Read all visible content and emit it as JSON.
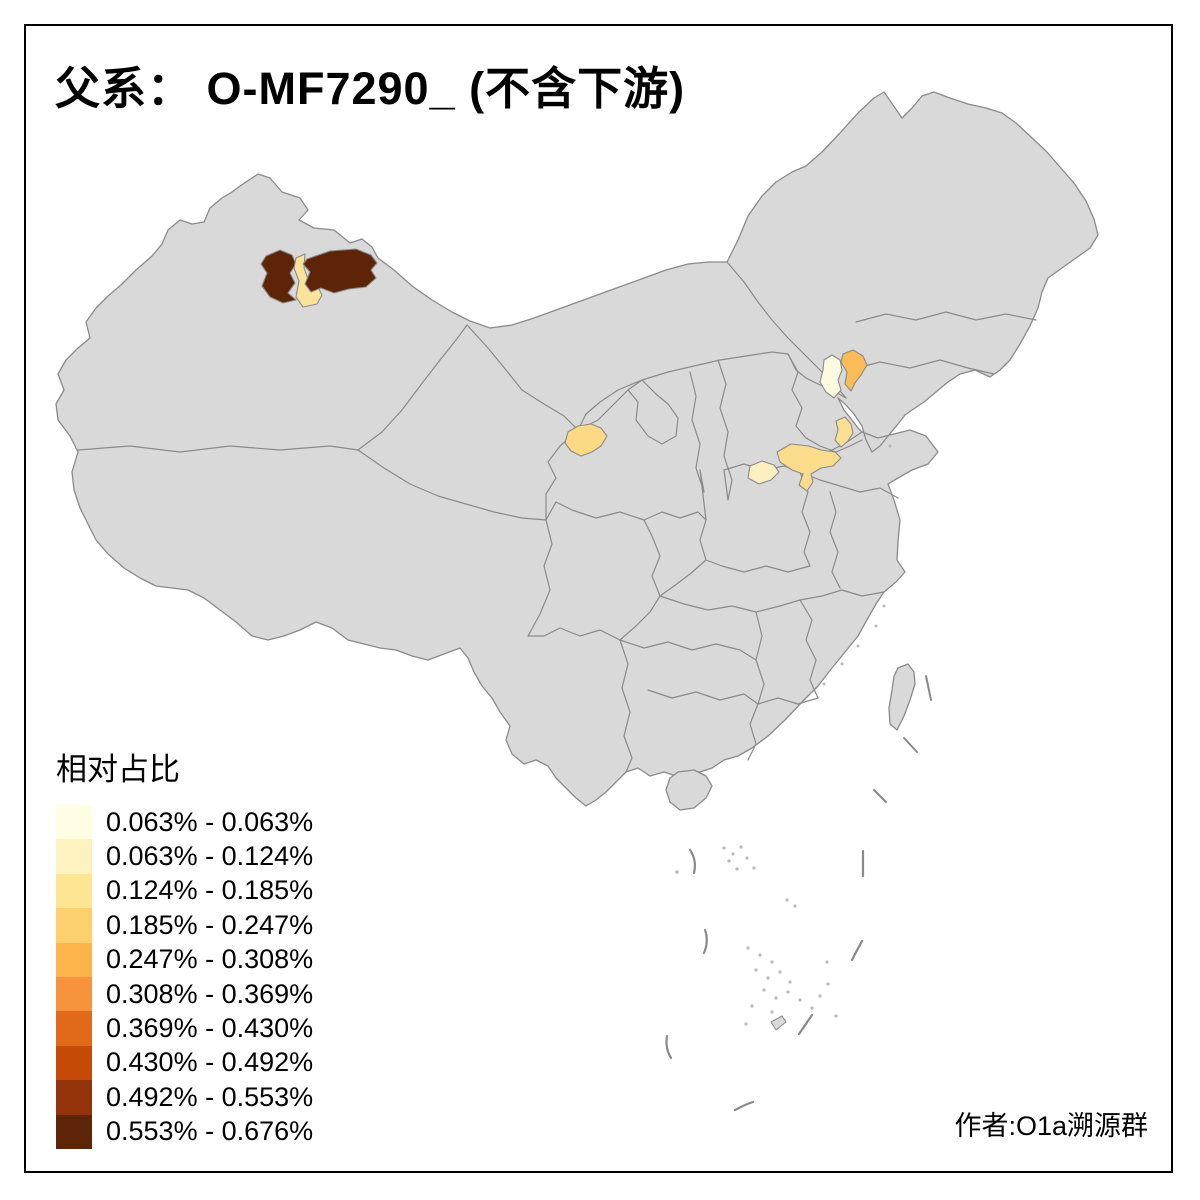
{
  "title": "父系： O-MF7290_ (不含下游)",
  "author": "作者:O1a溯源群",
  "legend": {
    "title": "相对占比",
    "items": [
      {
        "label": "0.063% - 0.063%",
        "color": "#FFFEE3"
      },
      {
        "label": "0.063% - 0.124%",
        "color": "#FEF3C0"
      },
      {
        "label": "0.124% - 0.185%",
        "color": "#FDE592"
      },
      {
        "label": "0.185% - 0.247%",
        "color": "#FDD06E"
      },
      {
        "label": "0.247% - 0.308%",
        "color": "#FCB44B"
      },
      {
        "label": "0.308% - 0.369%",
        "color": "#F7933B"
      },
      {
        "label": "0.369% - 0.430%",
        "color": "#E16A18"
      },
      {
        "label": "0.430% - 0.492%",
        "color": "#C64A05"
      },
      {
        "label": "0.492% - 0.553%",
        "color": "#943309"
      },
      {
        "label": "0.553% - 0.676%",
        "color": "#5E2408"
      }
    ]
  },
  "map": {
    "land_color": "#D9D9D9",
    "border_color": "#8A8A8A",
    "sea_color": "#FFFFFF",
    "frame_color": "#000000",
    "patches": [
      {
        "id": "xinjiang-north-west",
        "color": "#5E2408",
        "bucket": "0.553% - 0.676%"
      },
      {
        "id": "xinjiang-north-middle",
        "color": "#FBE49A",
        "bucket": "0.124% - 0.185%"
      },
      {
        "id": "xinjiang-north-east",
        "color": "#5E2408",
        "bucket": "0.553% - 0.676%"
      },
      {
        "id": "gansu-central",
        "color": "#FBD985",
        "bucket": "0.185% - 0.247%"
      },
      {
        "id": "henan-north",
        "color": "#FCF0C2",
        "bucket": "0.063% - 0.124%"
      },
      {
        "id": "shandong-west",
        "color": "#FBDC8C",
        "bucket": "0.124% - 0.185%"
      },
      {
        "id": "shandong-north",
        "color": "#FBDF92",
        "bucket": "0.124% - 0.185%"
      },
      {
        "id": "beijing",
        "color": "#FCFAE1",
        "bucket": "0.063% - 0.063%"
      },
      {
        "id": "tianjin",
        "color": "#FBBC58",
        "bucket": "0.247% - 0.308%"
      }
    ]
  }
}
